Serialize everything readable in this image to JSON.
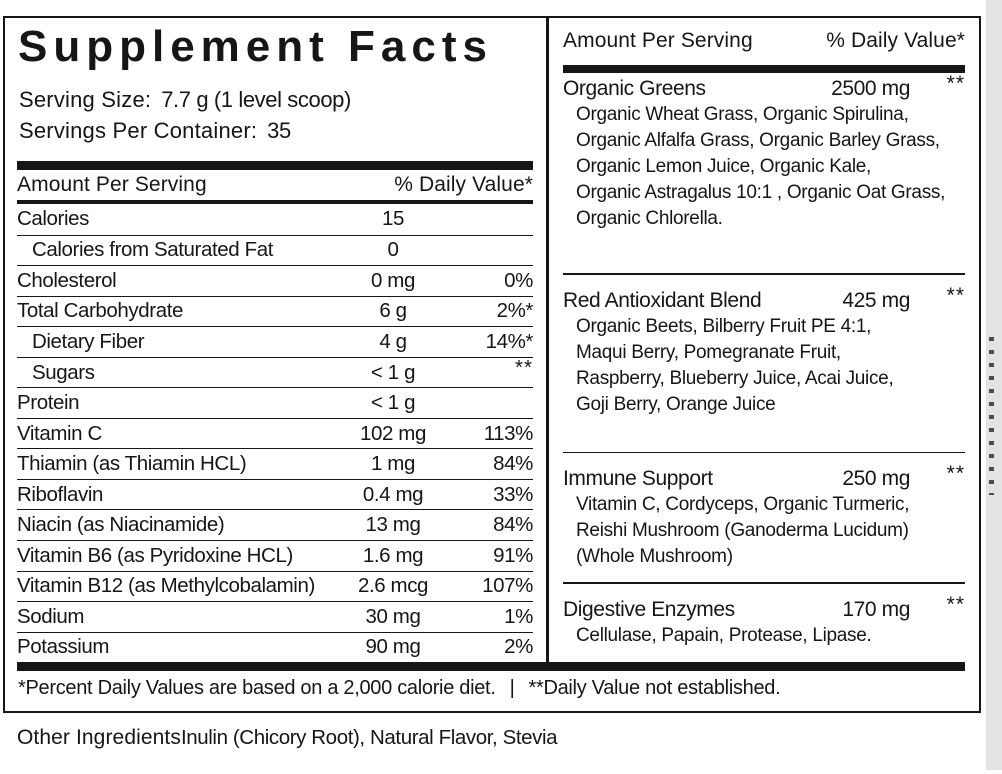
{
  "title": "Supplement Facts",
  "serving": {
    "size_label": "Serving Size:",
    "size_value": "7.7 g (1 level scoop)",
    "per_container_label": "Servings Per Container:",
    "per_container_value": "35"
  },
  "left_table": {
    "header": {
      "amount": "Amount Per Serving",
      "dv": "% Daily Value*"
    },
    "rows": [
      {
        "label": "Calories",
        "amount": "15",
        "dv": "",
        "indent": false
      },
      {
        "label": "Calories from Saturated Fat",
        "amount": "0",
        "dv": "",
        "indent": true
      },
      {
        "label": "Cholesterol",
        "amount": "0 mg",
        "dv": "0%",
        "indent": false
      },
      {
        "label": "Total Carbohydrate",
        "amount": "6 g",
        "dv": "2%*",
        "indent": false
      },
      {
        "label": "Dietary Fiber",
        "amount": "4 g",
        "dv": "14%*",
        "indent": true
      },
      {
        "label": "Sugars",
        "amount": "< 1 g",
        "dv": "**",
        "indent": true
      },
      {
        "label": "Protein",
        "amount": "< 1 g",
        "dv": "",
        "indent": false
      },
      {
        "label": "Vitamin C",
        "amount": "102 mg",
        "dv": "113%",
        "indent": false
      },
      {
        "label": "Thiamin (as Thiamin HCL)",
        "amount": "1 mg",
        "dv": "84%",
        "indent": false
      },
      {
        "label": "Riboflavin",
        "amount": "0.4 mg",
        "dv": "33%",
        "indent": false
      },
      {
        "label": "Niacin (as Niacinamide)",
        "amount": "13 mg",
        "dv": "84%",
        "indent": false
      },
      {
        "label": "Vitamin B6 (as Pyridoxine HCL)",
        "amount": "1.6 mg",
        "dv": "91%",
        "indent": false
      },
      {
        "label": "Vitamin B12 (as Methylcobalamin)",
        "amount": "2.6 mcg",
        "dv": "107%",
        "indent": false
      },
      {
        "label": "Sodium",
        "amount": "30 mg",
        "dv": "1%",
        "indent": false
      },
      {
        "label": "Potassium",
        "amount": "90 mg",
        "dv": "2%",
        "indent": false
      }
    ]
  },
  "right_panel": {
    "header": {
      "amount": "Amount Per Serving",
      "dv": "% Daily Value*"
    },
    "blends": [
      {
        "name": "Organic Greens",
        "amount": "2500 mg",
        "dv": "**",
        "ingredients_lines": [
          "Organic Wheat Grass, Organic Spirulina,",
          "Organic Alfalfa Grass, Organic Barley Grass,",
          "Organic Lemon Juice, Organic Kale,",
          "Organic Astragalus 10:1 , Organic Oat Grass,",
          "Organic Chlorella."
        ]
      },
      {
        "name": "Red Antioxidant Blend",
        "amount": "425 mg",
        "dv": "**",
        "ingredients_lines": [
          "Organic Beets, Bilberry Fruit PE 4:1,",
          "Maqui Berry, Pomegranate Fruit,",
          "Raspberry, Blueberry Juice, Acai Juice,",
          "Goji Berry, Orange Juice"
        ]
      },
      {
        "name": "Immune Support",
        "amount": "250 mg",
        "dv": "**",
        "ingredients_lines": [
          "Vitamin C, Cordyceps, Organic Turmeric,",
          "Reishi Mushroom (Ganoderma Lucidum)",
          "(Whole Mushroom)"
        ]
      },
      {
        "name": "Digestive Enzymes",
        "amount": "170 mg",
        "dv": "**",
        "ingredients_lines": [
          "Cellulase, Papain, Protease, Lipase."
        ]
      }
    ]
  },
  "footnote": {
    "dv_note": "*Percent Daily Values are based on a 2,000 calorie diet.",
    "separator": "|",
    "ndv_note": "**Daily Value not established."
  },
  "other_ingredients": {
    "label": "Other Ingredients",
    "value": "Inulin (Chicory Root), Natural Flavor, Stevia"
  },
  "colors": {
    "ink": "#161616",
    "background": "#ffffff",
    "edge_strip": "#e3e3e3",
    "edge_marks": "#4c4c4c"
  }
}
